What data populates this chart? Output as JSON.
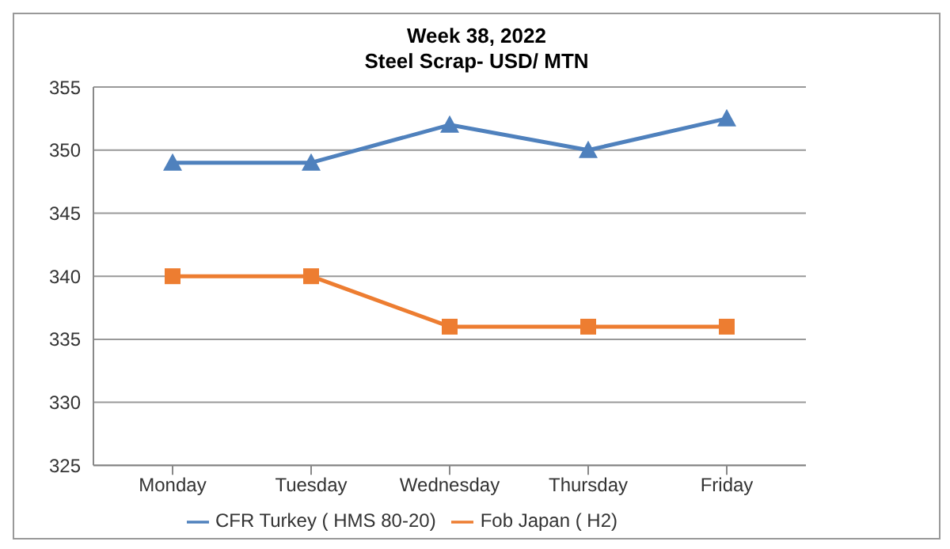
{
  "chart_data": {
    "type": "line",
    "title": "Week 38, 2022",
    "subtitle": "Steel Scrap- USD/ MTN",
    "categories": [
      "Monday",
      "Tuesday",
      "Wednesday",
      "Thursday",
      "Friday"
    ],
    "series": [
      {
        "name": "CFR Turkey ( HMS 80-20)",
        "color": "#4f81bd",
        "marker": "triangle",
        "values": [
          349,
          349,
          352,
          350,
          352.5
        ]
      },
      {
        "name": "Fob Japan ( H2)",
        "color": "#ed7d31",
        "marker": "square",
        "values": [
          340,
          340,
          336,
          336,
          336
        ]
      }
    ],
    "ylim": [
      325,
      355
    ],
    "yticks": [
      325,
      330,
      335,
      340,
      345,
      350,
      355
    ],
    "grid": "y",
    "legend": "bottom",
    "line_style": "solid"
  }
}
